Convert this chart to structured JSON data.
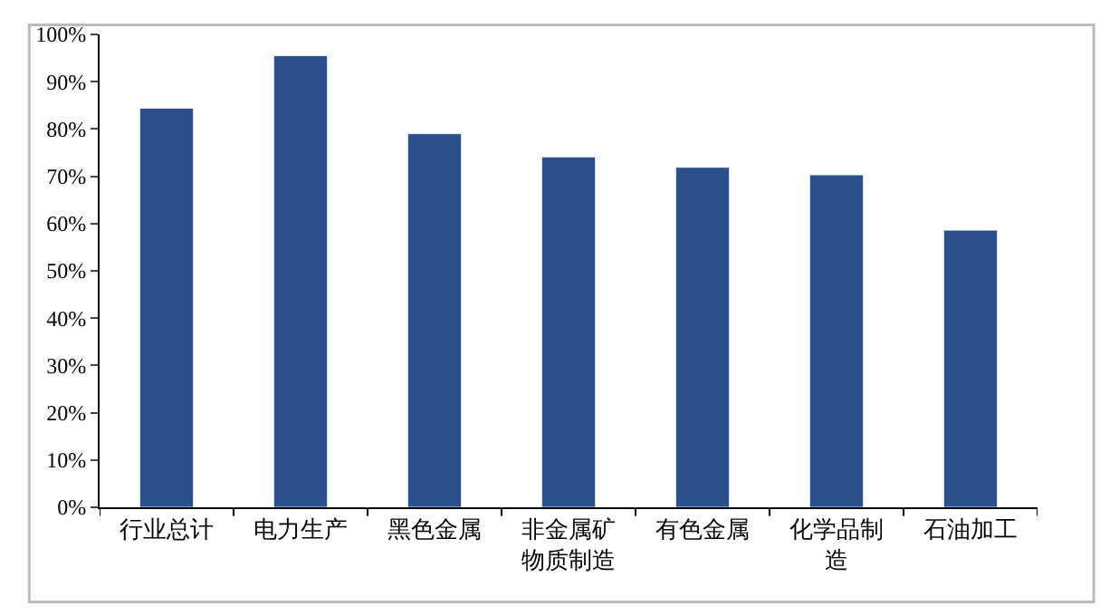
{
  "chart_data": {
    "type": "bar",
    "categories": [
      "行业总计",
      "电力生产",
      "黑色金属",
      "非金属矿物质制造",
      "有色金属",
      "化学品制造",
      "石油加工"
    ],
    "values": [
      84.4,
      95.5,
      79.0,
      74.1,
      71.9,
      70.3,
      58.6
    ],
    "color": "#2b4f8a",
    "ylim": [
      0,
      100
    ],
    "yticks": [
      {
        "value": 0,
        "label": "0%"
      },
      {
        "value": 10,
        "label": "10%"
      },
      {
        "value": 20,
        "label": "20%"
      },
      {
        "value": 30,
        "label": "30%"
      },
      {
        "value": 40,
        "label": "40%"
      },
      {
        "value": 50,
        "label": "50%"
      },
      {
        "value": 60,
        "label": "60%"
      },
      {
        "value": 70,
        "label": "70%"
      },
      {
        "value": 80,
        "label": "80%"
      },
      {
        "value": 90,
        "label": "90%"
      },
      {
        "value": 100,
        "label": "100%"
      }
    ]
  }
}
